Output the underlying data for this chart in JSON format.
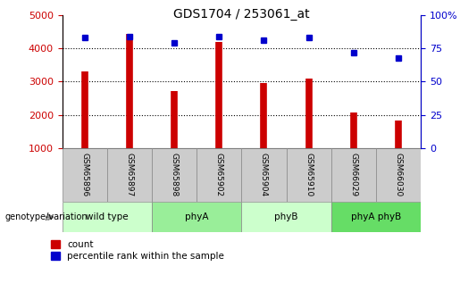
{
  "title": "GDS1704 / 253061_at",
  "samples": [
    "GSM65896",
    "GSM65897",
    "GSM65898",
    "GSM65902",
    "GSM65904",
    "GSM65910",
    "GSM66029",
    "GSM66030"
  ],
  "counts": [
    3300,
    4450,
    2720,
    4200,
    2970,
    3100,
    2080,
    1820
  ],
  "percentile_ranks": [
    83,
    84,
    79,
    84,
    81,
    83,
    72,
    68
  ],
  "groups": [
    {
      "label": "wild type",
      "start": 0,
      "end": 2,
      "color": "#ccffcc"
    },
    {
      "label": "phyA",
      "start": 2,
      "end": 4,
      "color": "#99ee99"
    },
    {
      "label": "phyB",
      "start": 4,
      "end": 6,
      "color": "#ccffcc"
    },
    {
      "label": "phyA phyB",
      "start": 6,
      "end": 8,
      "color": "#66dd66"
    }
  ],
  "count_color": "#cc0000",
  "percentile_color": "#0000cc",
  "bar_bottom": 1000,
  "ylim_left": [
    1000,
    5000
  ],
  "ylim_right": [
    0,
    100
  ],
  "yticks_left": [
    1000,
    2000,
    3000,
    4000,
    5000
  ],
  "yticks_right": [
    0,
    25,
    50,
    75,
    100
  ],
  "grid_values": [
    2000,
    3000,
    4000
  ],
  "genotype_label": "genotype/variation",
  "legend_count": "count",
  "legend_percentile": "percentile rank within the sample",
  "sample_row_color": "#cccccc",
  "bg_color": "#ffffff"
}
